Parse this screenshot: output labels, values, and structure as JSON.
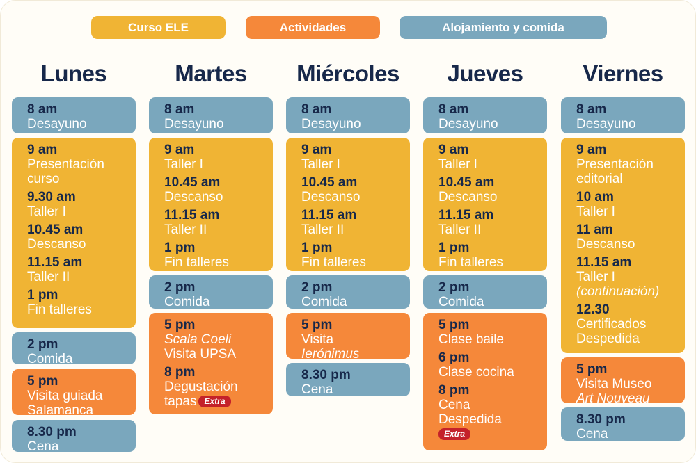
{
  "legend": {
    "curso": "Curso ELE",
    "actividades": "Actividades",
    "alojamiento": "Alojamiento y comida"
  },
  "colors": {
    "curso": "#f0b434",
    "actividades": "#f5883a",
    "alojamiento": "#7aa7bd",
    "title": "#17284a",
    "extra": "#c4222a"
  },
  "extra_label": "Extra",
  "days": {
    "lunes": {
      "title": "Lunes",
      "b1": [
        {
          "time": "8 am",
          "desc": "Desayuno"
        }
      ],
      "b2": [
        {
          "time": "9 am",
          "desc": "Presentación curso"
        },
        {
          "time": "9.30 am",
          "desc": "Taller I"
        },
        {
          "time": "10.45 am",
          "desc": "Descanso"
        },
        {
          "time": "11.15 am",
          "desc": "Taller II"
        },
        {
          "time": "1 pm",
          "desc": "Fin talleres"
        }
      ],
      "b3": [
        {
          "time": "2 pm",
          "desc": "Comida"
        }
      ],
      "b4": [
        {
          "time": "5 pm",
          "desc1": "Visita guiada",
          "desc2": "Salamanca"
        }
      ],
      "b5": [
        {
          "time": "8.30 pm",
          "desc": "Cena"
        }
      ]
    },
    "martes": {
      "title": "Martes",
      "b1": [
        {
          "time": "8 am",
          "desc": "Desayuno"
        }
      ],
      "b2": [
        {
          "time": "9 am",
          "desc": "Taller I"
        },
        {
          "time": "10.45 am",
          "desc": "Descanso"
        },
        {
          "time": "11.15 am",
          "desc": "Taller II"
        },
        {
          "time": "1 pm",
          "desc": "Fin talleres"
        }
      ],
      "b3": [
        {
          "time": "2 pm",
          "desc": "Comida"
        }
      ],
      "b4": [
        {
          "time": "5 pm",
          "desc1": "Scala Coeli",
          "desc2": "Visita UPSA"
        },
        {
          "time": "8 pm",
          "desc1": "Degustación",
          "desc2": "tapas"
        }
      ]
    },
    "miercoles": {
      "title": "Miércoles",
      "b1": [
        {
          "time": "8 am",
          "desc": "Desayuno"
        }
      ],
      "b2": [
        {
          "time": "9 am",
          "desc": "Taller I"
        },
        {
          "time": "10.45 am",
          "desc": "Descanso"
        },
        {
          "time": "11.15 am",
          "desc": "Taller II"
        },
        {
          "time": "1 pm",
          "desc": "Fin talleres"
        }
      ],
      "b3": [
        {
          "time": "2 pm",
          "desc": "Comida"
        }
      ],
      "b4": [
        {
          "time": "5 pm",
          "desc1": "Visita",
          "desc2": "Ierónimus"
        }
      ],
      "b5": [
        {
          "time": "8.30 pm",
          "desc": "Cena"
        }
      ]
    },
    "jueves": {
      "title": "Jueves",
      "b1": [
        {
          "time": "8 am",
          "desc": "Desayuno"
        }
      ],
      "b2": [
        {
          "time": "9 am",
          "desc": "Taller I"
        },
        {
          "time": "10.45 am",
          "desc": "Descanso"
        },
        {
          "time": "11.15 am",
          "desc": "Taller II"
        },
        {
          "time": "1 pm",
          "desc": "Fin talleres"
        }
      ],
      "b3": [
        {
          "time": "2 pm",
          "desc": "Comida"
        }
      ],
      "b4": [
        {
          "time": "5 pm",
          "desc": "Clase baile"
        },
        {
          "time": "6 pm",
          "desc": "Clase cocina"
        },
        {
          "time": "8 pm",
          "desc1": "Cena",
          "desc2": "Despedida"
        }
      ]
    },
    "viernes": {
      "title": "Viernes",
      "b1": [
        {
          "time": "8 am",
          "desc": "Desayuno"
        }
      ],
      "b2": [
        {
          "time": "9 am",
          "desc": "Presentación editorial"
        },
        {
          "time": "10 am",
          "desc": "Taller I"
        },
        {
          "time": "11 am",
          "desc": "Descanso"
        },
        {
          "time": "11.15 am",
          "desc1": "Taller I",
          "desc2": "(continuación)"
        },
        {
          "time": "12.30",
          "desc1": "Certificados",
          "desc2": "Despedida"
        }
      ],
      "b3": [
        {
          "time": "5 pm",
          "desc1": "Visita Museo",
          "desc2": "Art Nouveau"
        }
      ],
      "b4": [
        {
          "time": "8.30 pm",
          "desc": "Cena"
        }
      ]
    }
  }
}
